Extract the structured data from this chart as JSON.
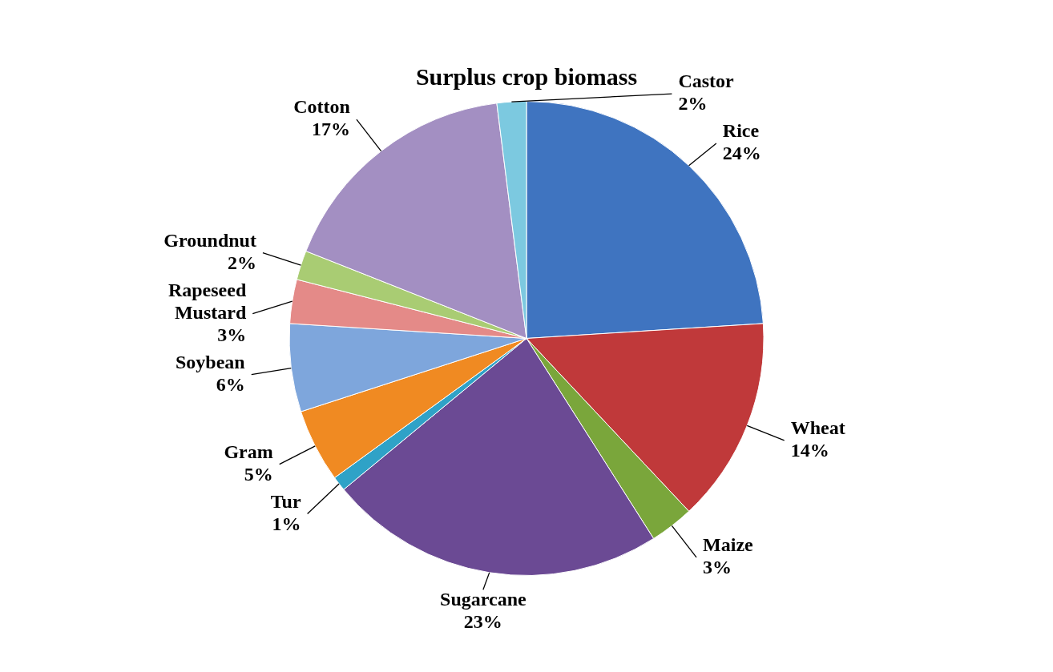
{
  "chart_data": {
    "type": "pie",
    "title": "Surplus crop biomass",
    "categories": [
      "Rice",
      "Wheat",
      "Maize",
      "Sugarcane",
      "Tur",
      "Gram",
      "Soybean",
      "Rapeseed Mustard",
      "Groundnut",
      "Cotton",
      "Castor"
    ],
    "values": [
      24,
      14,
      3,
      23,
      1,
      5,
      6,
      3,
      2,
      17,
      2
    ],
    "value_labels": [
      "24%",
      "14%",
      "3%",
      "23%",
      "1%",
      "5%",
      "6%",
      "3%",
      "2%",
      "17%",
      "2%"
    ],
    "colors": [
      "#3f74c0",
      "#c0393a",
      "#7aa63b",
      "#6b4a94",
      "#2fa2c7",
      "#f08a22",
      "#7ea6dc",
      "#e48a88",
      "#a9cc73",
      "#a38fc2",
      "#7cc9e0"
    ],
    "legend": false
  }
}
